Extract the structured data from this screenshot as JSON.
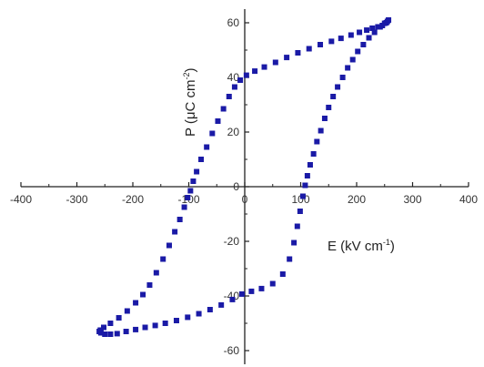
{
  "chart_data": {
    "type": "scatter",
    "title": "",
    "xlabel": "E (kV cm",
    "xlabel_sup": "-1",
    "xlabel_close": ")",
    "ylabel": "P (μC cm",
    "ylabel_sup": "-2",
    "ylabel_close": ")",
    "xlim": [
      -400,
      400
    ],
    "ylim": [
      -65,
      65
    ],
    "x_ticks": [
      "-400",
      "-300",
      "-200",
      "-100",
      "0",
      "100",
      "200",
      "300",
      "400"
    ],
    "y_ticks": [
      "-60",
      "-40",
      "-20",
      "0",
      "20",
      "40",
      "60"
    ],
    "grid": false,
    "legend": "none",
    "marker_color": "#1a1aa6",
    "series": [
      {
        "points": [
          [
            257,
            61
          ],
          [
            253,
            60
          ],
          [
            246,
            59
          ],
          [
            238,
            58.5
          ],
          [
            228,
            58
          ],
          [
            218,
            57.3
          ],
          [
            205,
            56.5
          ],
          [
            190,
            55.5
          ],
          [
            172,
            54.3
          ],
          [
            155,
            53.2
          ],
          [
            135,
            52
          ],
          [
            115,
            50.5
          ],
          [
            95,
            49
          ],
          [
            75,
            47.3
          ],
          [
            55,
            45.5
          ],
          [
            35,
            43.8
          ],
          [
            18,
            42.3
          ],
          [
            3,
            40.8
          ],
          [
            -8,
            39
          ],
          [
            -18,
            36.5
          ],
          [
            -28,
            33
          ],
          [
            -38,
            28.5
          ],
          [
            -48,
            24
          ],
          [
            -58,
            19.5
          ],
          [
            -68,
            14.5
          ],
          [
            -78,
            10
          ],
          [
            -86,
            5.5
          ],
          [
            -92,
            2
          ],
          [
            -97,
            -1.5
          ],
          [
            -102,
            -4
          ],
          [
            -108,
            -7.5
          ],
          [
            -116,
            -12
          ],
          [
            -125,
            -16.5
          ],
          [
            -135,
            -21.5
          ],
          [
            -146,
            -26.5
          ],
          [
            -158,
            -31.5
          ],
          [
            -170,
            -36
          ],
          [
            -182,
            -39.5
          ],
          [
            -195,
            -42.5
          ],
          [
            -210,
            -45.5
          ],
          [
            -225,
            -48
          ],
          [
            -240,
            -50
          ],
          [
            -252,
            -51.5
          ],
          [
            -258,
            -52.5
          ],
          [
            -260,
            -53
          ],
          [
            -257,
            -53.5
          ],
          [
            -250,
            -54
          ],
          [
            -240,
            -54
          ],
          [
            -228,
            -53.8
          ],
          [
            -212,
            -53
          ],
          [
            -195,
            -52.3
          ],
          [
            -178,
            -51.5
          ],
          [
            -160,
            -50.8
          ],
          [
            -142,
            -50
          ],
          [
            -122,
            -49
          ],
          [
            -102,
            -47.8
          ],
          [
            -82,
            -46.5
          ],
          [
            -62,
            -45
          ],
          [
            -42,
            -43.3
          ],
          [
            -22,
            -41.3
          ],
          [
            -5,
            -39.3
          ],
          [
            12,
            -38.3
          ],
          [
            30,
            -37.3
          ],
          [
            50,
            -35.5
          ],
          [
            68,
            -32
          ],
          [
            80,
            -26.5
          ],
          [
            88,
            -20.5
          ],
          [
            94,
            -14.5
          ],
          [
            99,
            -9
          ],
          [
            104,
            -3.5
          ],
          [
            108,
            0.5
          ],
          [
            112,
            4
          ],
          [
            117,
            8
          ],
          [
            123,
            12
          ],
          [
            129,
            16.5
          ],
          [
            136,
            20.5
          ],
          [
            143,
            25
          ],
          [
            150,
            29
          ],
          [
            158,
            33
          ],
          [
            166,
            36.5
          ],
          [
            175,
            40
          ],
          [
            184,
            43.5
          ],
          [
            193,
            46.5
          ],
          [
            202,
            49.5
          ],
          [
            212,
            52
          ],
          [
            222,
            54.5
          ],
          [
            232,
            56.5
          ],
          [
            242,
            58.5
          ],
          [
            250,
            59.8
          ],
          [
            255,
            60.5
          ]
        ]
      }
    ]
  }
}
